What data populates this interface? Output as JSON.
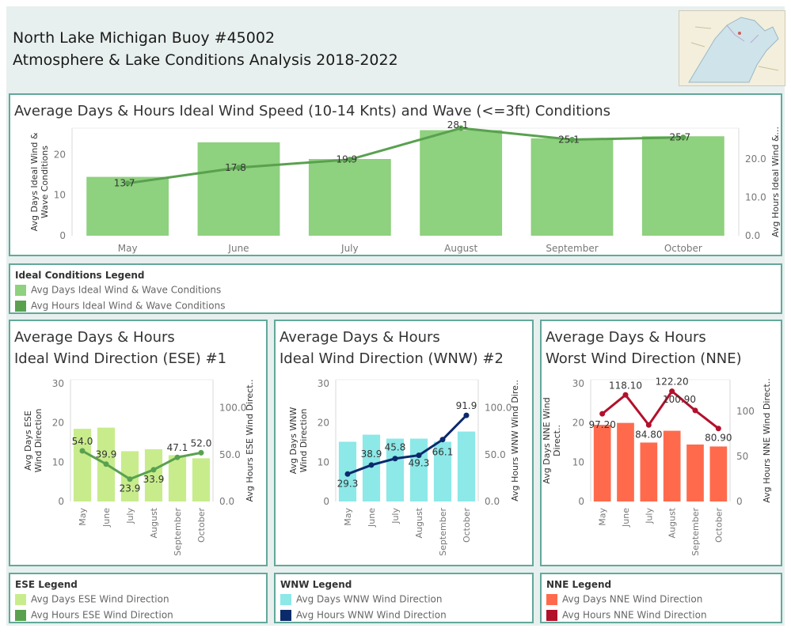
{
  "header": {
    "title_line1": "North Lake Michigan Buoy #45002",
    "title_line2": "Atmosphere & Lake Conditions Analysis 2018-2022",
    "map_icon": "nautical-chart-thumbnail"
  },
  "colors": {
    "ideal_days": "#8ed17e",
    "ideal_hours": "#59a14f",
    "ese_days": "#c8ec8c",
    "ese_hours": "#59a14f",
    "wnw_days": "#8de8e8",
    "wnw_hours": "#0b2a6b",
    "nne_days": "#ff6a4d",
    "nne_hours": "#b3102c",
    "border": "#62a89a"
  },
  "chart_data": [
    {
      "type": "bar",
      "title": "Average Days & Hours Ideal Wind Speed (10-14 Knts) and Wave (<=3ft) Conditions",
      "categories": [
        "May",
        "June",
        "July",
        "August",
        "September",
        "October"
      ],
      "ylabel": "Avg Days Ideal Wind & Wave Conditions",
      "ylabel_right": "Avg Hours Ideal Wind &...",
      "ylim": [
        0,
        26.5
      ],
      "y_ticks": [
        "0",
        "10",
        "20"
      ],
      "ylim_right": [
        0,
        28.1
      ],
      "y_ticks_right": [
        "0.0",
        "10.0",
        "20.0"
      ],
      "series": [
        {
          "name": "Avg Days Ideal Wind & Wave Conditions",
          "kind": "bar",
          "values": [
            14.5,
            23.0,
            18.9,
            26.0,
            24.0,
            24.5
          ]
        },
        {
          "name": "Avg Hours Ideal Wind & Wave Conditions",
          "kind": "line",
          "values": [
            13.7,
            17.8,
            19.9,
            28.1,
            25.1,
            25.7
          ],
          "labels": [
            "13.7",
            "17.8",
            "19.9",
            "28.1",
            "25.1",
            "25.7"
          ]
        }
      ],
      "grid": false
    },
    {
      "type": "bar",
      "title_line1": "Average Days & Hours",
      "title_line2": "Ideal Wind Direction (ESE) #1",
      "categories": [
        "May",
        "June",
        "July",
        "August",
        "September",
        "October"
      ],
      "ylabel": "Avg Days ESE Wind Direction",
      "ylabel_right": "Avg Hours ESE Wind Direct..",
      "ylim": [
        0,
        31
      ],
      "y_ticks": [
        "0",
        "10",
        "20",
        "30"
      ],
      "ylim_right": [
        0,
        130
      ],
      "y_ticks_right": [
        "0.0",
        "50.0",
        "100.0"
      ],
      "series": [
        {
          "name": "Avg Days ESE Wind Direction",
          "kind": "bar",
          "values": [
            18.5,
            18.8,
            12.8,
            13.3,
            11.8,
            11.0
          ]
        },
        {
          "name": "Avg Hours ESE Wind Direction",
          "kind": "line",
          "values": [
            54.0,
            39.9,
            23.9,
            33.9,
            47.1,
            52.0
          ],
          "labels": [
            "54.0",
            "39.9",
            "23.9",
            "33.9",
            "47.1",
            "52.0"
          ]
        }
      ]
    },
    {
      "type": "bar",
      "title_line1": "Average Days & Hours",
      "title_line2": "Ideal Wind Direction (WNW) #2",
      "categories": [
        "May",
        "June",
        "July",
        "August",
        "September",
        "October"
      ],
      "ylabel": "Avg Days WNW Wind Direction",
      "ylabel_right": "Avg Hours WNW Wind Dire..",
      "ylim": [
        0,
        31
      ],
      "y_ticks": [
        "0",
        "10",
        "20",
        "30"
      ],
      "ylim_right": [
        0,
        130
      ],
      "y_ticks_right": [
        "0.0",
        "50.0",
        "100.0"
      ],
      "series": [
        {
          "name": "Avg Days WNW Wind Direction",
          "kind": "bar",
          "values": [
            15.2,
            17.0,
            16.0,
            16.0,
            15.2,
            17.8
          ]
        },
        {
          "name": "Avg Hours WNW Wind Direction",
          "kind": "line",
          "values": [
            29.3,
            38.9,
            45.8,
            49.3,
            66.1,
            91.9
          ],
          "labels": [
            "29.3",
            "38.9",
            "45.8",
            "49.3",
            "66.1",
            "91.9"
          ]
        }
      ]
    },
    {
      "type": "bar",
      "title_line1": "Average Days & Hours",
      "title_line2": "Worst Wind Direction (NNE)",
      "categories": [
        "May",
        "June",
        "July",
        "August",
        "September",
        "October"
      ],
      "ylabel": "Avg Days NNE Wind Direct..",
      "ylabel_right": "Avg Hours NNE Wind Direct..",
      "ylim": [
        0,
        31
      ],
      "y_ticks": [
        "0",
        "10",
        "20",
        "30"
      ],
      "ylim_right": [
        0,
        135
      ],
      "y_ticks_right": [
        "0",
        "50",
        "100"
      ],
      "series": [
        {
          "name": "Avg Days NNE Wind Direction",
          "kind": "bar",
          "values": [
            19.5,
            20.0,
            15.0,
            18.0,
            14.5,
            14.0
          ]
        },
        {
          "name": "Avg Hours NNE Wind Direction",
          "kind": "line",
          "values": [
            97.2,
            118.1,
            84.8,
            122.2,
            100.9,
            80.9
          ],
          "labels": [
            "97.20",
            "118.10",
            "84.80",
            "122.20",
            "100.90",
            "80.90"
          ]
        }
      ]
    }
  ],
  "legends": {
    "ideal": {
      "title": "Ideal Conditions Legend",
      "items": [
        "Avg Days Ideal Wind & Wave Conditions",
        "Avg Hours Ideal Wind & Wave Conditions"
      ]
    },
    "ese": {
      "title": "ESE Legend",
      "items": [
        "Avg Days ESE Wind Direction",
        "Avg Hours ESE Wind Direction"
      ]
    },
    "wnw": {
      "title": "WNW Legend",
      "items": [
        "Avg Days WNW Wind Direction",
        "Avg Hours WNW Wind Direction"
      ]
    },
    "nne": {
      "title": "NNE Legend",
      "items": [
        "Avg Days NNE Wind Direction",
        "Avg Hours NNE Wind Direction"
      ]
    }
  }
}
